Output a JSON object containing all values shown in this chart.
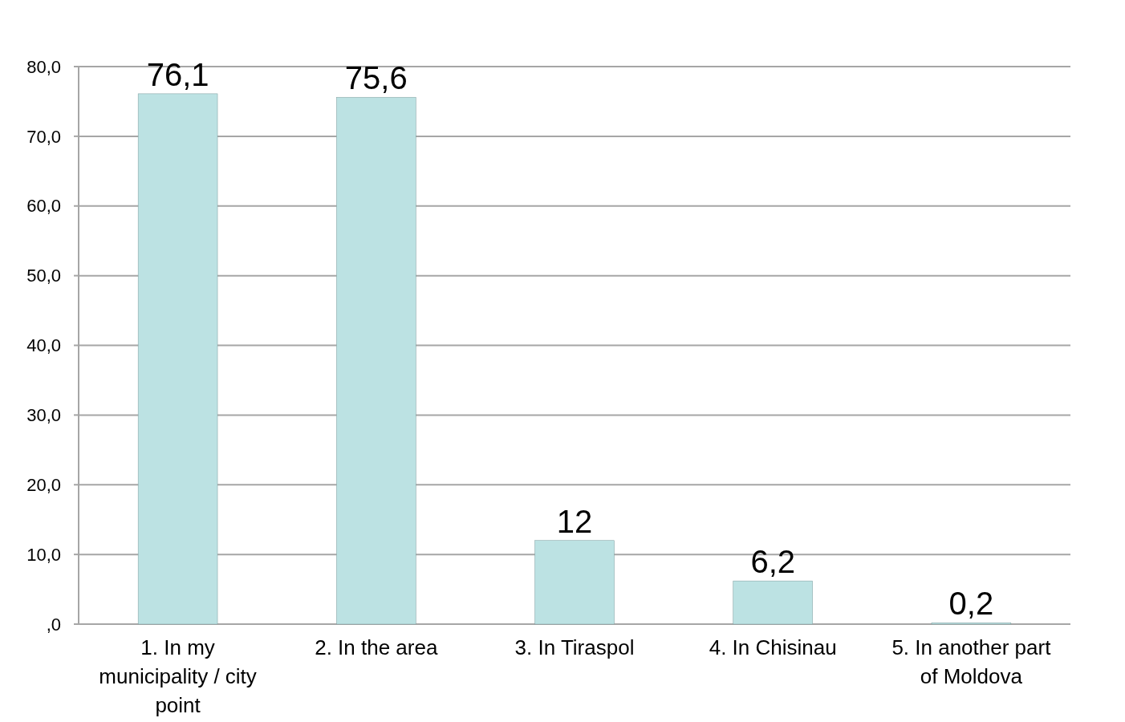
{
  "chart_data": {
    "type": "bar",
    "categories": [
      "1. In my municipality / city point",
      "2. In the area",
      "3. In Tiraspol",
      "4. In Chisinau",
      "5. In another part of Moldova"
    ],
    "values": [
      76.1,
      75.6,
      12,
      6.2,
      0.2
    ],
    "value_labels": [
      "76,1",
      "75,6",
      "12",
      "6,2",
      "0,2"
    ],
    "color": "#bce2e3",
    "ylim": [
      0,
      80
    ],
    "yticks": [
      {
        "value": 0,
        "label": ",0"
      },
      {
        "value": 10,
        "label": "10,0"
      },
      {
        "value": 20,
        "label": "20,0"
      },
      {
        "value": 30,
        "label": "30,0"
      },
      {
        "value": 40,
        "label": "40,0"
      },
      {
        "value": 50,
        "label": "50,0"
      },
      {
        "value": 60,
        "label": "60,0"
      },
      {
        "value": 70,
        "label": "70,0"
      },
      {
        "value": 80,
        "label": "80,0"
      }
    ],
    "grid": "y"
  }
}
